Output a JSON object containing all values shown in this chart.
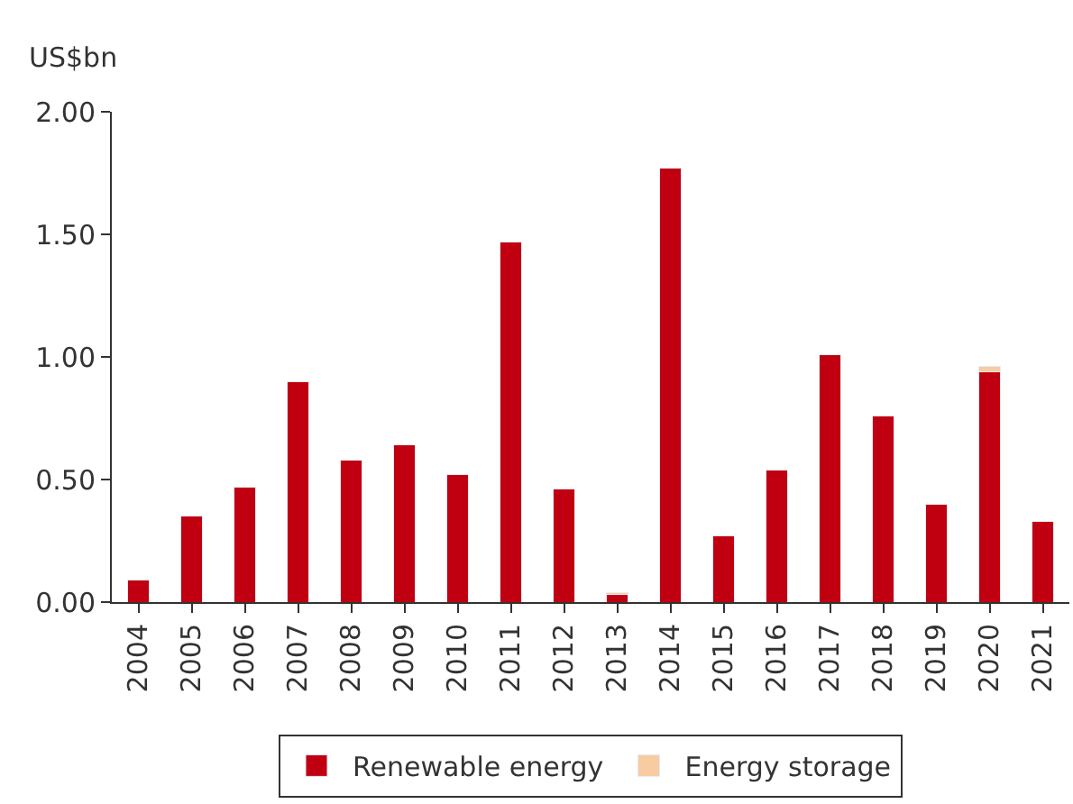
{
  "chart_data": {
    "type": "bar",
    "ylabel": "US$bn",
    "stacked": true,
    "categories": [
      "2004",
      "2005",
      "2006",
      "2007",
      "2008",
      "2009",
      "2010",
      "2011",
      "2012",
      "2013",
      "2014",
      "2015",
      "2016",
      "2017",
      "2018",
      "2019",
      "2020",
      "2021"
    ],
    "series": [
      {
        "name": "Renewable energy",
        "color": "#c00010",
        "values": [
          0.09,
          0.35,
          0.47,
          0.9,
          0.58,
          0.64,
          0.52,
          1.47,
          0.46,
          0.03,
          1.77,
          0.27,
          0.54,
          1.01,
          0.76,
          0.4,
          0.94,
          0.33
        ]
      },
      {
        "name": "Energy storage",
        "color": "#f8cba0",
        "values": [
          null,
          null,
          null,
          null,
          null,
          null,
          null,
          null,
          null,
          0.01,
          null,
          null,
          null,
          null,
          null,
          null,
          0.02,
          null
        ]
      }
    ],
    "ylim": [
      0,
      2
    ],
    "yticks": [
      {
        "value": 0,
        "label": "0.00"
      },
      {
        "value": 0.5,
        "label": "0.50"
      },
      {
        "value": 1,
        "label": "1.00"
      },
      {
        "value": 1.5,
        "label": "1.50"
      },
      {
        "value": 2,
        "label": "2.00"
      }
    ],
    "legend": "bottom"
  }
}
